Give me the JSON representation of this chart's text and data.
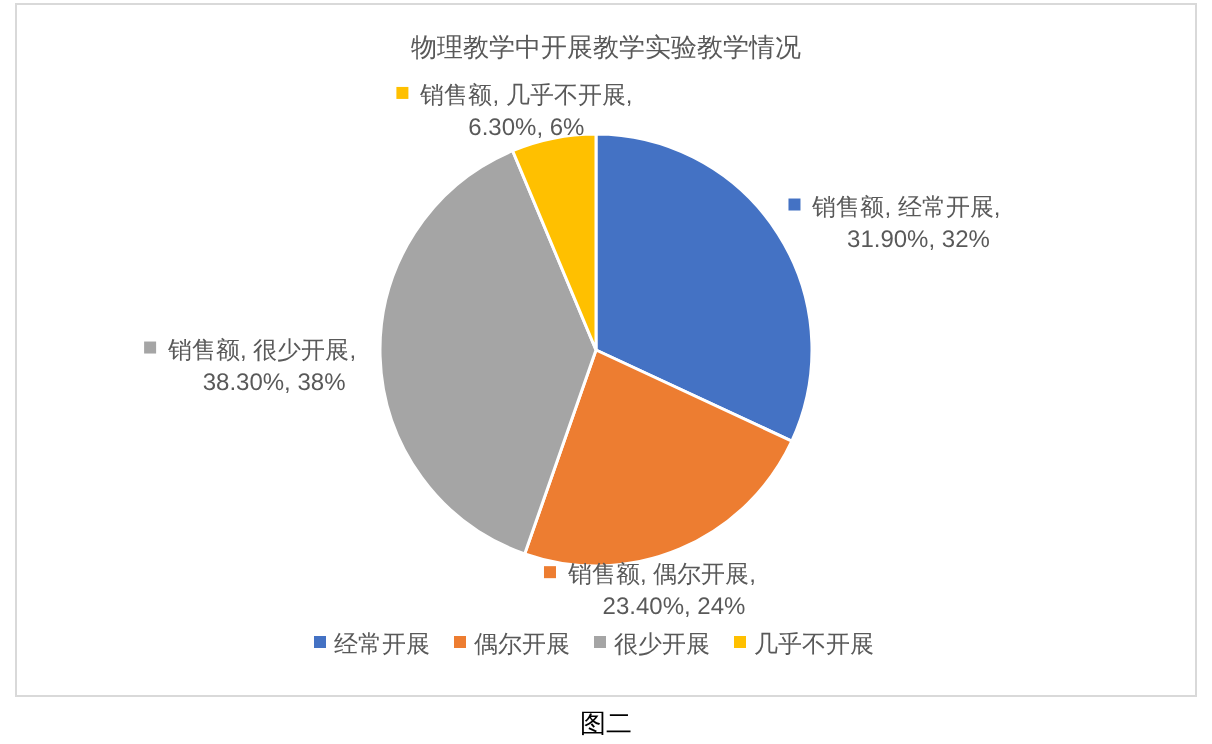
{
  "chart_data": {
    "type": "pie",
    "title": "物理教学中开展教学实验教学情况",
    "categories": [
      "经常开展",
      "偶尔开展",
      "很少开展",
      "几乎不开展"
    ],
    "values": [
      31.9,
      23.4,
      38.3,
      6.3
    ],
    "colors": [
      "#4472c4",
      "#ed7d31",
      "#a5a5a5",
      "#ffc000"
    ],
    "value_labels": [
      "销售额, 经常开展, 31.90%, 32%",
      "销售额, 偶尔开展, 23.40%, 24%",
      "销售额, 很少开展, 38.30%, 38%",
      "销售额, 几乎不开展, 6.30%, 6%"
    ],
    "legend": "bottom",
    "annotations": [
      "图二"
    ]
  }
}
